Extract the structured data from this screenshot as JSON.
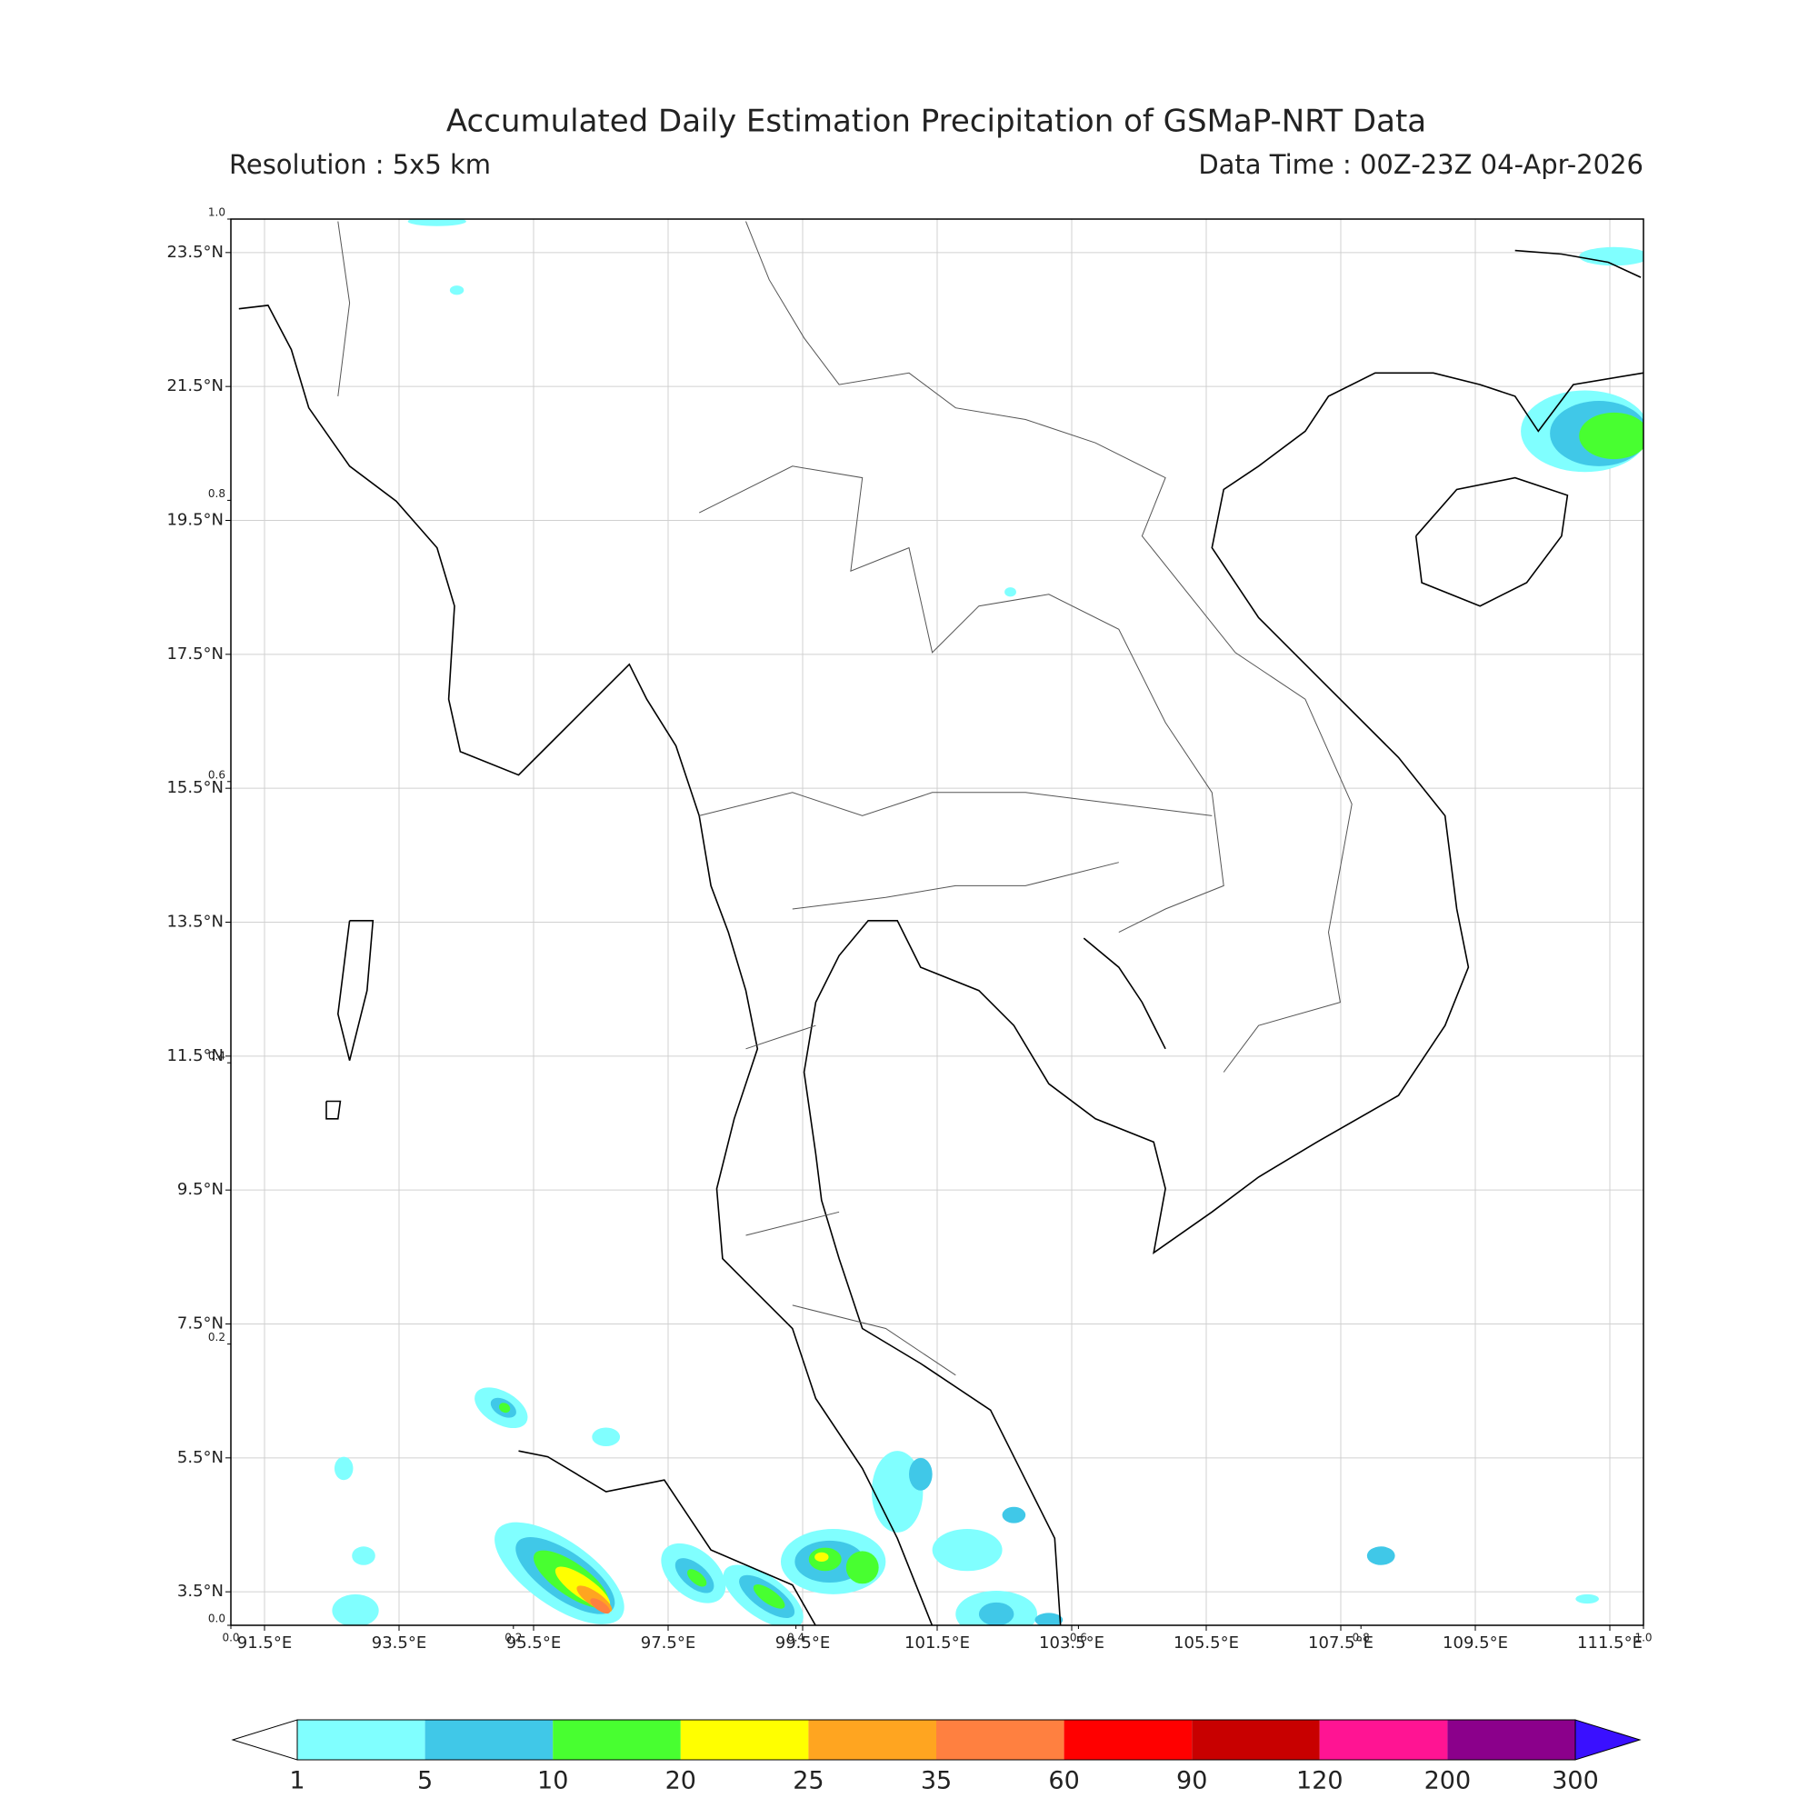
{
  "title": "Accumulated Daily Estimation Precipitation of GSMaP-NRT Data",
  "subtitle_left": "Resolution : 5x5 km",
  "subtitle_right": "Data Time : 00Z-23Z 04-Apr-2026",
  "map": {
    "xlim": [
      91,
      112
    ],
    "ylim": [
      3,
      24
    ],
    "xticks": [
      {
        "value": 91.5,
        "label": "91.5°E"
      },
      {
        "value": 93.5,
        "label": "93.5°E"
      },
      {
        "value": 95.5,
        "label": "95.5°E"
      },
      {
        "value": 97.5,
        "label": "97.5°E"
      },
      {
        "value": 99.5,
        "label": "99.5°E"
      },
      {
        "value": 101.5,
        "label": "101.5°E"
      },
      {
        "value": 103.5,
        "label": "103.5°E"
      },
      {
        "value": 105.5,
        "label": "105.5°E"
      },
      {
        "value": 107.5,
        "label": "107.5°E"
      },
      {
        "value": 109.5,
        "label": "109.5°E"
      },
      {
        "value": 111.5,
        "label": "111.5°E"
      }
    ],
    "yticks": [
      {
        "value": 3.5,
        "label": "3.5°N"
      },
      {
        "value": 5.5,
        "label": "5.5°N"
      },
      {
        "value": 7.5,
        "label": "7.5°N"
      },
      {
        "value": 9.5,
        "label": "9.5°N"
      },
      {
        "value": 11.5,
        "label": "11.5°N"
      },
      {
        "value": 13.5,
        "label": "13.5°N"
      },
      {
        "value": 15.5,
        "label": "15.5°N"
      },
      {
        "value": 17.5,
        "label": "17.5°N"
      },
      {
        "value": 19.5,
        "label": "19.5°N"
      },
      {
        "value": 21.5,
        "label": "21.5°N"
      },
      {
        "value": 23.5,
        "label": "23.5°N"
      }
    ],
    "grid": true
  },
  "overlay_axes": {
    "lim": [
      0,
      1
    ],
    "xticks": [
      {
        "value": 0,
        "label": "0.0"
      },
      0.2,
      0.4,
      0.6,
      0.8,
      {
        "value": 1,
        "label": "1.0"
      }
    ],
    "yticks": [
      {
        "value": 0,
        "label": "0.0"
      },
      0.2,
      0.4,
      0.6,
      0.8,
      {
        "value": 1,
        "label": "1.0"
      }
    ]
  },
  "colorbar": {
    "levels": [
      1,
      5,
      10,
      20,
      25,
      35,
      60,
      90,
      120,
      200,
      300
    ],
    "colors": [
      "#80ffff",
      "#40c8e8",
      "#48ff30",
      "#ffff00",
      "#ffa520",
      "#ff8040",
      "#ff0000",
      "#c80000",
      "#ff1493",
      "#8b008b"
    ],
    "under_color": "#ffffff",
    "over_color": "#3a10ff"
  }
}
